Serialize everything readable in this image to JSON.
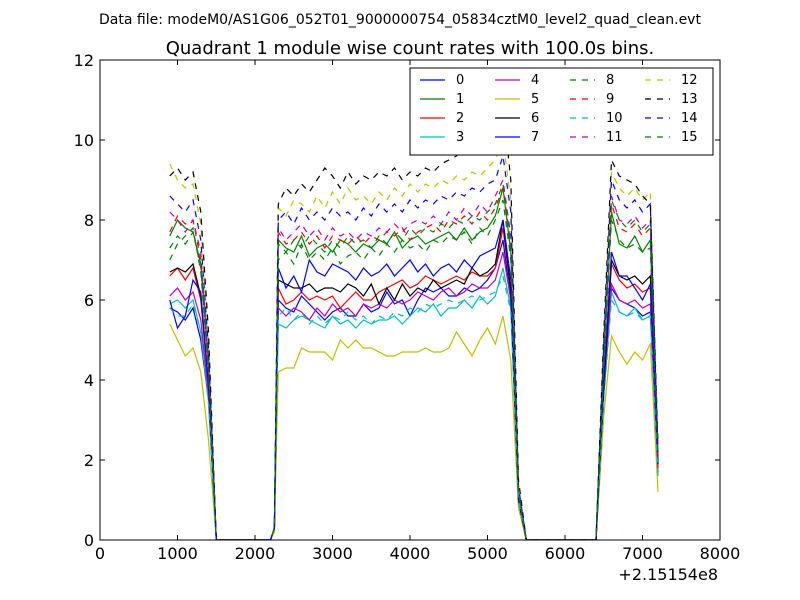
{
  "suptitle": "Data file: modeM0/AS1G06_052T01_9000000754_05834cztM0_level2_quad_clean.evt",
  "chart_data": {
    "type": "line",
    "title": "Quadrant 1 module wise count rates with 100.0s bins.",
    "xlabel": "",
    "ylabel": "",
    "x_offset_label": "+2.15154e8",
    "xlim": [
      0,
      8000
    ],
    "ylim": [
      0,
      12
    ],
    "xticks": [
      0,
      1000,
      2000,
      3000,
      4000,
      5000,
      6000,
      7000,
      8000
    ],
    "yticks": [
      0,
      2,
      4,
      6,
      8,
      10,
      12
    ],
    "grid": false,
    "legend": {
      "placement": "top-right",
      "columns": 4
    },
    "x": [
      900,
      1000,
      1100,
      1200,
      1300,
      1400,
      1500,
      2100,
      2200,
      2250,
      2300,
      2400,
      2500,
      2600,
      2700,
      2800,
      2900,
      3000,
      3100,
      3200,
      3300,
      3400,
      3500,
      3600,
      3700,
      3800,
      3900,
      4000,
      4100,
      4200,
      4300,
      4400,
      4500,
      4600,
      4700,
      4800,
      4900,
      5000,
      5100,
      5200,
      5300,
      5400,
      5500,
      6400,
      6500,
      6600,
      6700,
      6800,
      6900,
      7000,
      7100,
      7200
    ],
    "series": [
      {
        "name": "0",
        "color": "#0000ff",
        "dash": "solid",
        "values": [
          5.8,
          5.7,
          5.5,
          5.8,
          5.0,
          3.5,
          0,
          0,
          0,
          0.3,
          6.0,
          5.8,
          5.7,
          6.1,
          5.9,
          5.7,
          5.5,
          5.7,
          5.8,
          5.6,
          5.6,
          5.9,
          5.7,
          5.8,
          6.2,
          5.9,
          6.0,
          5.6,
          6.0,
          6.3,
          6.2,
          6.3,
          6.1,
          6.1,
          6.3,
          6.2,
          6.3,
          6.5,
          6.8,
          7.5,
          6.0,
          1.0,
          0,
          0,
          3.6,
          6.3,
          6.0,
          5.9,
          5.8,
          5.6,
          5.7,
          1.8
        ]
      },
      {
        "name": "1",
        "color": "#008000",
        "dash": "solid",
        "values": [
          7.6,
          8.0,
          7.8,
          7.7,
          6.9,
          4.5,
          0,
          0,
          0,
          0.3,
          7.5,
          7.3,
          7.2,
          7.6,
          7.1,
          7.3,
          7.4,
          7.2,
          7.5,
          7.4,
          7.2,
          7.4,
          7.3,
          7.5,
          7.4,
          7.7,
          7.3,
          7.5,
          7.6,
          7.4,
          7.5,
          7.6,
          7.7,
          7.5,
          7.8,
          7.5,
          7.7,
          7.8,
          8.1,
          8.8,
          7.2,
          1.2,
          0,
          0,
          4.5,
          8.2,
          7.4,
          7.3,
          7.6,
          7.2,
          7.5,
          2.0
        ]
      },
      {
        "name": "2",
        "color": "#ff0000",
        "dash": "solid",
        "values": [
          6.6,
          6.8,
          6.5,
          6.8,
          6.0,
          3.8,
          0,
          0,
          0,
          0.3,
          6.3,
          5.9,
          6.0,
          6.2,
          6.0,
          6.1,
          6.0,
          6.1,
          5.8,
          6.0,
          6.2,
          6.0,
          6.0,
          6.2,
          6.3,
          6.4,
          6.5,
          6.3,
          6.4,
          6.6,
          6.5,
          6.4,
          6.5,
          6.6,
          6.5,
          6.7,
          6.6,
          6.6,
          6.8,
          7.8,
          6.2,
          1.0,
          0,
          0,
          3.9,
          6.9,
          6.5,
          6.3,
          6.4,
          6.2,
          6.3,
          1.8
        ]
      },
      {
        "name": "3",
        "color": "#00bfbf",
        "dash": "solid",
        "values": [
          5.9,
          6.0,
          5.8,
          6.0,
          5.2,
          3.5,
          0,
          0,
          0,
          0.3,
          5.4,
          5.3,
          5.5,
          5.6,
          5.5,
          5.4,
          5.3,
          5.6,
          5.4,
          5.5,
          5.3,
          5.5,
          5.4,
          5.5,
          5.5,
          5.6,
          5.4,
          5.6,
          5.8,
          5.7,
          5.9,
          5.6,
          5.8,
          5.8,
          6.0,
          5.8,
          6.1,
          5.9,
          6.1,
          6.8,
          5.8,
          1.0,
          0,
          0,
          3.6,
          6.2,
          5.7,
          5.6,
          5.8,
          5.5,
          5.6,
          1.6
        ]
      },
      {
        "name": "4",
        "color": "#bf00bf",
        "dash": "solid",
        "values": [
          6.1,
          6.3,
          6.0,
          6.2,
          5.5,
          3.6,
          0,
          0,
          0,
          0.3,
          5.8,
          5.6,
          5.8,
          5.7,
          5.5,
          5.8,
          5.6,
          5.9,
          5.7,
          5.8,
          5.6,
          5.9,
          5.8,
          5.9,
          5.8,
          6.0,
          5.9,
          6.0,
          6.2,
          6.1,
          6.0,
          6.2,
          6.3,
          6.1,
          6.2,
          6.4,
          6.3,
          6.3,
          6.5,
          7.2,
          6.0,
          1.0,
          0,
          0,
          3.7,
          6.4,
          6.0,
          5.9,
          6.0,
          5.8,
          5.9,
          1.7
        ]
      },
      {
        "name": "5",
        "color": "#bfbf00",
        "dash": "solid",
        "values": [
          5.4,
          5.0,
          4.6,
          4.8,
          4.2,
          2.5,
          0,
          0,
          0,
          0.2,
          4.2,
          4.3,
          4.3,
          4.8,
          4.7,
          4.7,
          4.7,
          4.5,
          5.0,
          4.8,
          5.0,
          4.8,
          4.8,
          4.7,
          4.6,
          4.6,
          4.7,
          4.7,
          4.7,
          4.8,
          4.7,
          4.7,
          4.8,
          5.2,
          4.9,
          4.6,
          5.0,
          5.3,
          4.9,
          5.6,
          4.5,
          0.8,
          0,
          0,
          3.1,
          5.1,
          4.7,
          4.4,
          4.7,
          4.5,
          4.9,
          1.2
        ]
      },
      {
        "name": "6",
        "color": "#000000",
        "dash": "solid",
        "values": [
          6.7,
          6.8,
          6.7,
          6.9,
          6.1,
          3.9,
          0,
          0,
          0,
          0.3,
          6.5,
          6.4,
          6.3,
          6.3,
          6.4,
          6.2,
          6.3,
          6.3,
          6.2,
          6.4,
          6.3,
          6.1,
          6.4,
          5.9,
          6.3,
          6.0,
          6.4,
          6.1,
          6.3,
          6.2,
          6.5,
          6.3,
          6.4,
          6.5,
          6.4,
          6.8,
          6.6,
          6.7,
          6.9,
          8.0,
          6.2,
          1.0,
          0,
          0,
          3.8,
          7.0,
          6.6,
          6.5,
          6.6,
          6.4,
          6.6,
          1.9
        ]
      },
      {
        "name": "7",
        "color": "#0000ff",
        "dash": "solid",
        "values": [
          6.0,
          5.3,
          5.6,
          6.5,
          6.2,
          3.9,
          0,
          0,
          0,
          0.3,
          6.8,
          6.3,
          6.6,
          6.2,
          7.0,
          6.7,
          6.6,
          6.9,
          6.8,
          6.7,
          6.5,
          6.8,
          6.6,
          6.7,
          6.9,
          6.6,
          6.8,
          7.0,
          6.7,
          6.9,
          6.6,
          6.8,
          6.9,
          6.7,
          7.0,
          6.8,
          7.1,
          7.2,
          7.3,
          8.0,
          6.5,
          1.0,
          0,
          0,
          4.0,
          7.2,
          6.6,
          6.6,
          6.3,
          6.0,
          6.4,
          1.9
        ]
      },
      {
        "name": "8",
        "color": "#008000",
        "dash": "dashed",
        "values": [
          7.0,
          7.4,
          7.6,
          7.8,
          6.7,
          4.2,
          0,
          0,
          0,
          0.3,
          7.0,
          7.2,
          6.9,
          7.4,
          7.0,
          7.2,
          7.0,
          7.3,
          6.9,
          7.1,
          7.2,
          7.0,
          7.3,
          7.1,
          7.4,
          7.2,
          7.5,
          7.3,
          7.4,
          7.2,
          7.5,
          7.4,
          7.6,
          7.5,
          7.7,
          7.4,
          7.8,
          7.6,
          8.0,
          8.5,
          7.0,
          1.2,
          0,
          0,
          4.3,
          8.0,
          7.5,
          7.3,
          7.4,
          7.2,
          7.3,
          2.0
        ]
      },
      {
        "name": "9",
        "color": "#ff0000",
        "dash": "dashed",
        "values": [
          7.7,
          8.1,
          7.9,
          8.0,
          7.0,
          4.4,
          0,
          0,
          0,
          0.3,
          7.7,
          7.4,
          7.5,
          7.7,
          7.4,
          7.6,
          7.3,
          7.6,
          7.5,
          7.4,
          7.6,
          7.4,
          7.6,
          7.5,
          7.7,
          7.6,
          7.8,
          7.5,
          7.7,
          7.8,
          7.9,
          7.7,
          8.0,
          7.9,
          8.1,
          7.9,
          8.2,
          8.0,
          8.3,
          8.8,
          7.4,
          1.2,
          0,
          0,
          4.5,
          8.4,
          7.8,
          7.7,
          7.9,
          7.6,
          7.8,
          2.1
        ]
      },
      {
        "name": "10",
        "color": "#00bfbf",
        "dash": "dashed",
        "values": [
          5.8,
          5.6,
          5.6,
          5.9,
          5.2,
          3.4,
          0,
          0,
          0,
          0.3,
          5.6,
          5.8,
          5.5,
          5.7,
          5.4,
          5.6,
          5.4,
          5.6,
          5.5,
          5.7,
          5.5,
          5.6,
          5.4,
          5.6,
          5.5,
          5.7,
          5.6,
          5.8,
          5.7,
          5.9,
          5.8,
          5.9,
          6.0,
          5.9,
          6.0,
          6.1,
          6.0,
          6.1,
          6.2,
          6.6,
          5.7,
          1.0,
          0,
          0,
          3.5,
          6.0,
          5.7,
          5.6,
          5.7,
          5.5,
          5.6,
          1.6
        ]
      },
      {
        "name": "11",
        "color": "#bf00bf",
        "dash": "dashed",
        "values": [
          8.2,
          8.0,
          7.7,
          8.0,
          7.2,
          4.5,
          0,
          0,
          0,
          0.3,
          7.8,
          7.5,
          7.7,
          7.9,
          7.6,
          7.8,
          7.5,
          7.8,
          7.6,
          7.7,
          7.5,
          7.7,
          7.6,
          7.8,
          7.7,
          7.9,
          7.7,
          7.9,
          8.0,
          7.9,
          8.1,
          7.9,
          8.2,
          8.0,
          8.3,
          8.1,
          8.4,
          8.2,
          8.6,
          9.0,
          7.6,
          1.2,
          0,
          0,
          4.6,
          8.6,
          8.0,
          7.9,
          8.1,
          7.8,
          8.0,
          2.1
        ]
      },
      {
        "name": "12",
        "color": "#bfbf00",
        "dash": "dashed",
        "values": [
          9.4,
          9.0,
          8.8,
          8.9,
          7.9,
          5.0,
          0,
          0,
          0,
          0.3,
          8.3,
          8.1,
          8.5,
          8.4,
          8.2,
          8.6,
          8.3,
          8.7,
          8.4,
          8.8,
          8.5,
          8.6,
          8.4,
          8.7,
          8.5,
          8.8,
          8.6,
          8.9,
          8.7,
          8.9,
          8.8,
          9.0,
          8.9,
          9.1,
          9.0,
          9.2,
          9.1,
          9.3,
          9.5,
          10.0,
          8.5,
          1.4,
          0,
          0,
          5.0,
          9.2,
          8.8,
          8.6,
          8.8,
          8.5,
          8.7,
          2.3
        ]
      },
      {
        "name": "13",
        "color": "#000000",
        "dash": "dashed",
        "values": [
          9.1,
          9.3,
          9.0,
          9.2,
          8.2,
          5.2,
          0,
          0,
          0,
          0.3,
          8.4,
          8.8,
          8.6,
          8.9,
          8.7,
          9.0,
          9.3,
          9.1,
          8.8,
          9.2,
          8.9,
          9.1,
          9.0,
          9.2,
          9.1,
          9.3,
          9.0,
          9.2,
          9.1,
          9.3,
          9.2,
          9.4,
          9.5,
          9.6,
          9.8,
          10.2,
          9.9,
          10.4,
          10.2,
          10.9,
          9.0,
          1.5,
          0,
          0,
          5.2,
          9.5,
          9.1,
          9.0,
          8.9,
          8.6,
          8.4,
          2.4
        ]
      },
      {
        "name": "14",
        "color": "#0000ff",
        "dash": "dashed",
        "values": [
          8.6,
          8.4,
          8.2,
          8.5,
          7.5,
          4.8,
          0,
          0,
          0,
          0.3,
          8.0,
          8.2,
          7.9,
          8.3,
          8.0,
          8.2,
          8.0,
          8.3,
          8.1,
          8.2,
          8.0,
          8.3,
          8.1,
          8.4,
          8.2,
          8.4,
          8.2,
          8.5,
          8.3,
          8.5,
          8.4,
          8.6,
          8.5,
          8.7,
          8.6,
          8.8,
          8.7,
          8.9,
          9.0,
          9.6,
          8.2,
          1.3,
          0,
          0,
          4.9,
          9.0,
          8.5,
          8.3,
          8.5,
          8.2,
          8.4,
          2.2
        ]
      },
      {
        "name": "15",
        "color": "#008000",
        "dash": "dashed",
        "values": [
          7.3,
          7.6,
          7.4,
          7.7,
          6.8,
          4.3,
          0,
          0,
          0,
          0.3,
          7.4,
          7.2,
          7.5,
          7.3,
          7.6,
          7.4,
          7.2,
          7.5,
          7.3,
          7.6,
          7.4,
          7.5,
          7.3,
          7.6,
          7.4,
          7.7,
          7.5,
          7.8,
          7.6,
          7.8,
          7.7,
          7.9,
          7.8,
          8.0,
          7.9,
          8.1,
          8.0,
          8.2,
          8.4,
          8.9,
          7.4,
          1.2,
          0,
          0,
          4.5,
          8.5,
          8.0,
          7.8,
          8.0,
          7.7,
          7.9,
          2.1
        ]
      }
    ]
  }
}
